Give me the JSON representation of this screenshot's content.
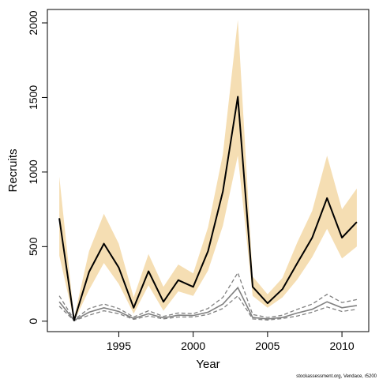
{
  "chart_data": {
    "type": "line",
    "xlabel": "Year",
    "ylabel": "Recruits",
    "xlim": [
      1990.2,
      2011.8
    ],
    "ylim": [
      -70,
      2090
    ],
    "x_ticks": [
      1995,
      2000,
      2005,
      2010
    ],
    "y_ticks": [
      0,
      500,
      1000,
      1500,
      2000
    ],
    "grid": false,
    "legend": "none",
    "credit": "stockassessment.org, Vendace, r5200",
    "colors": {
      "estimate": "#000000",
      "band": "#f5deb3",
      "retro": "#808080"
    },
    "x": [
      1991,
      1992,
      1993,
      1994,
      1995,
      1996,
      1997,
      1998,
      1999,
      2000,
      2001,
      2002,
      2003,
      2004,
      2005,
      2006,
      2007,
      2008,
      2009,
      2010,
      2011
    ],
    "estimate": [
      690,
      5,
      330,
      520,
      360,
      90,
      335,
      130,
      275,
      230,
      470,
      870,
      1505,
      230,
      120,
      215,
      390,
      560,
      825,
      560,
      665
    ],
    "ci_upper": [
      970,
      25,
      470,
      720,
      520,
      160,
      450,
      230,
      380,
      320,
      630,
      1120,
      2020,
      300,
      180,
      290,
      530,
      740,
      1110,
      750,
      890
    ],
    "ci_lower": [
      440,
      0,
      210,
      390,
      250,
      50,
      240,
      70,
      200,
      170,
      340,
      640,
      1110,
      170,
      90,
      160,
      280,
      430,
      620,
      420,
      500
    ],
    "retrospective": {
      "mid": [
        130,
        5,
        60,
        90,
        65,
        18,
        50,
        22,
        40,
        38,
        60,
        115,
        225,
        25,
        15,
        25,
        55,
        80,
        130,
        90,
        105
      ],
      "upper": [
        170,
        10,
        85,
        115,
        85,
        28,
        70,
        32,
        55,
        50,
        85,
        160,
        325,
        45,
        25,
        40,
        80,
        115,
        180,
        125,
        145
      ],
      "lower": [
        100,
        3,
        40,
        70,
        50,
        12,
        35,
        15,
        28,
        28,
        45,
        85,
        170,
        15,
        8,
        18,
        35,
        60,
        95,
        65,
        80
      ]
    }
  }
}
